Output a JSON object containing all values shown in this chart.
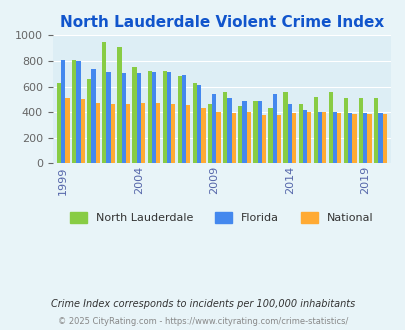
{
  "title": "North Lauderdale Violent Crime Index",
  "background_color": "#e8f4f8",
  "plot_bg_color": "#ddeef5",
  "title_color": "#1155cc",
  "years": [
    1999,
    2000,
    2001,
    2002,
    2003,
    2004,
    2005,
    2006,
    2007,
    2008,
    2009,
    2010,
    2011,
    2012,
    2013,
    2014,
    2015,
    2016,
    2017,
    2018,
    2019,
    2020
  ],
  "north_lauderdale": [
    630,
    805,
    660,
    950,
    910,
    750,
    720,
    725,
    680,
    625,
    465,
    560,
    450,
    490,
    430,
    560,
    465,
    520,
    555,
    510,
    510,
    510
  ],
  "florida": [
    810,
    800,
    735,
    710,
    705,
    705,
    715,
    715,
    690,
    610,
    540,
    510,
    490,
    490,
    545,
    465,
    420,
    405,
    400,
    390,
    390,
    390
  ],
  "national": [
    510,
    500,
    475,
    465,
    465,
    470,
    470,
    465,
    455,
    435,
    405,
    395,
    400,
    375,
    380,
    395,
    405,
    400,
    390,
    385,
    385,
    385
  ],
  "north_lauderdale_color": "#88cc44",
  "florida_color": "#4488ee",
  "national_color": "#ffaa33",
  "xtick_years": [
    1999,
    2004,
    2009,
    2014,
    2019
  ],
  "ylim": [
    0,
    1000
  ],
  "yticks": [
    0,
    200,
    400,
    600,
    800,
    1000
  ],
  "subtitle": "Crime Index corresponds to incidents per 100,000 inhabitants",
  "footer": "© 2025 CityRating.com - https://www.cityrating.com/crime-statistics/",
  "subtitle_color": "#333333",
  "footer_color": "#888888",
  "legend_labels": [
    "North Lauderdale",
    "Florida",
    "National"
  ]
}
